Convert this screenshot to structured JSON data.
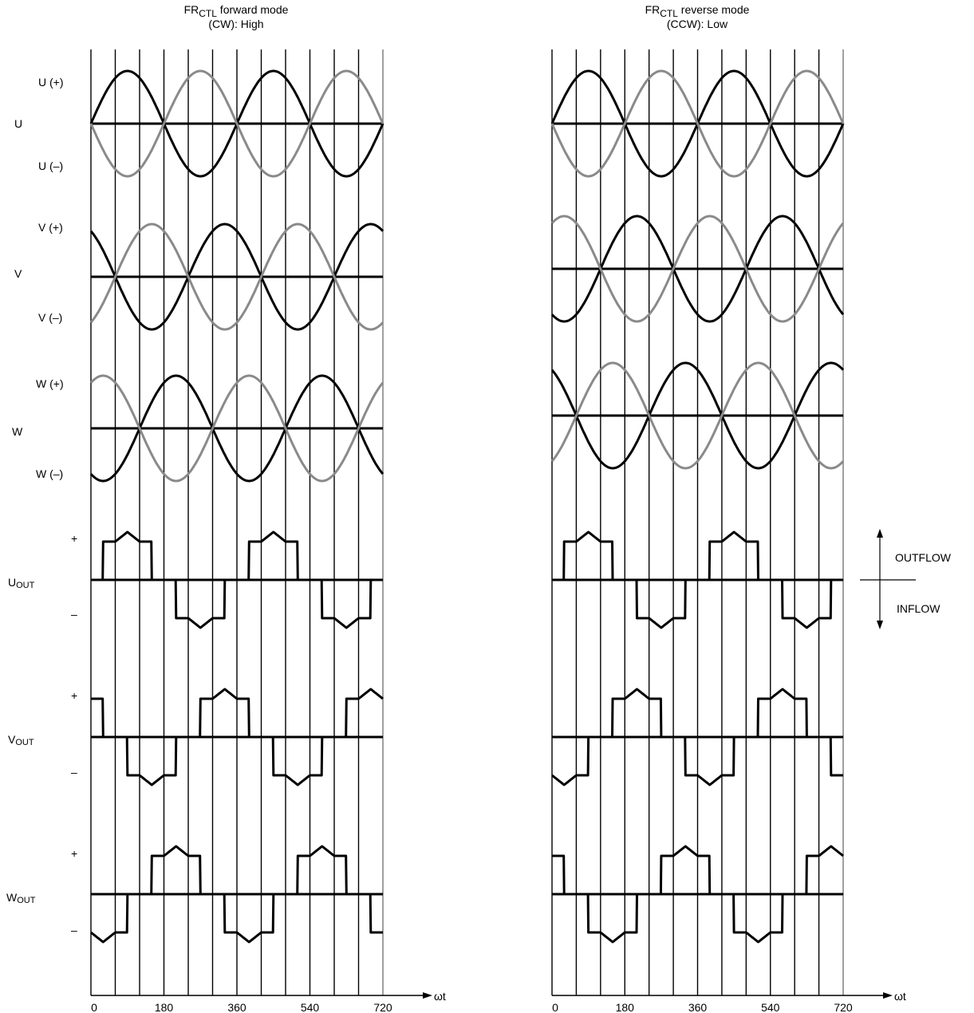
{
  "forward_panel": {
    "title_line1_prefix": "FR",
    "title_line1_sub": "CTL",
    "title_line1_suffix": " forward mode",
    "title_line2": "(CW): High"
  },
  "reverse_panel": {
    "title_line1_prefix": "FR",
    "title_line1_sub": "CTL",
    "title_line1_suffix": " reverse mode",
    "title_line2": "(CCW): Low"
  },
  "signal_labels": {
    "u_plus": "U (+)",
    "u_group": "U",
    "u_minus": "U (–)",
    "v_plus": "V (+)",
    "v_group": "V",
    "v_minus": "V (–)",
    "w_plus": "W (+)",
    "w_group": "W",
    "w_minus": "W (–)",
    "out_plus": "+",
    "out_minus": "–",
    "uout_main": "U",
    "uout_sub": "OUT",
    "vout_main": "V",
    "vout_sub": "OUT",
    "wout_main": "W",
    "wout_sub": "OUT"
  },
  "legend": {
    "outflow": "OUTFLOW",
    "inflow": "INFLOW"
  },
  "axis": {
    "label": "ωt",
    "ticks": [
      "0",
      "180",
      "360",
      "540",
      "720"
    ]
  },
  "colors": {
    "primary": "#000000",
    "inverted": "#8a8a8a"
  }
}
